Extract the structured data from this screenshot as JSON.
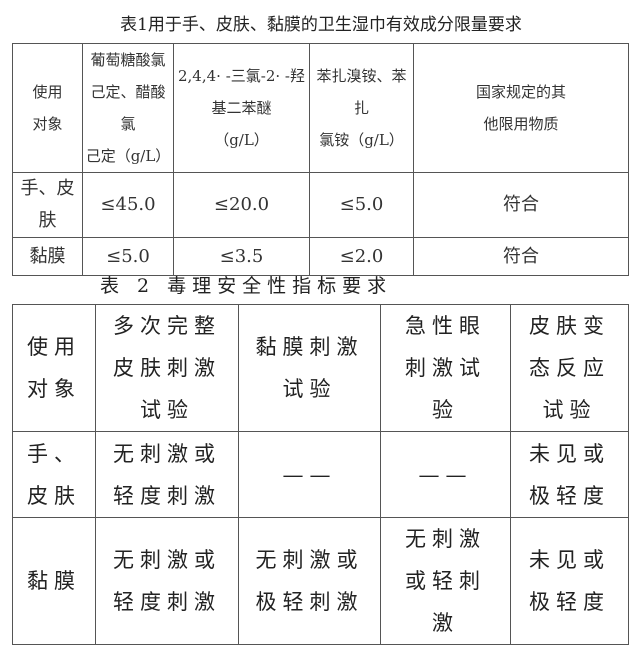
{
  "table1": {
    "title": "表1用于手、皮肤、黏膜的卫生湿巾有效成分限量要求",
    "headers": [
      "使用\n对象",
      "葡萄糖酸氯\n己定、醋酸氯\n己定（g/L）",
      "2,4,4· -三氯-2· -羟\n基二苯醚\n（g/L）",
      "苯扎溴铵、苯扎\n氯铵（g/L）",
      "国家规定的其\n他限用物质"
    ],
    "rows": [
      [
        "手、皮肤",
        "≤45.0",
        "≤20.0",
        "≤5.0",
        "符合"
      ],
      [
        "黏膜",
        "≤5.0",
        "≤3.5",
        "≤2.0",
        "符合"
      ]
    ]
  },
  "table2": {
    "title": "表 2 毒理安全性指标要求",
    "headers": [
      "使用\n对象",
      "多次完整\n皮肤刺激\n试验",
      "黏膜刺激\n试验",
      "急性眼\n刺激试\n验",
      "皮肤变\n态反应\n试验"
    ],
    "rows": [
      [
        "手、\n皮肤",
        "无刺激或\n轻度刺激",
        "——",
        "——",
        "未见或\n极轻度"
      ],
      [
        "黏膜",
        "无刺激或\n轻度刺激",
        "无刺激或\n极轻刺激",
        "无刺激\n或轻刺\n激",
        "未见或\n极轻度"
      ]
    ]
  }
}
